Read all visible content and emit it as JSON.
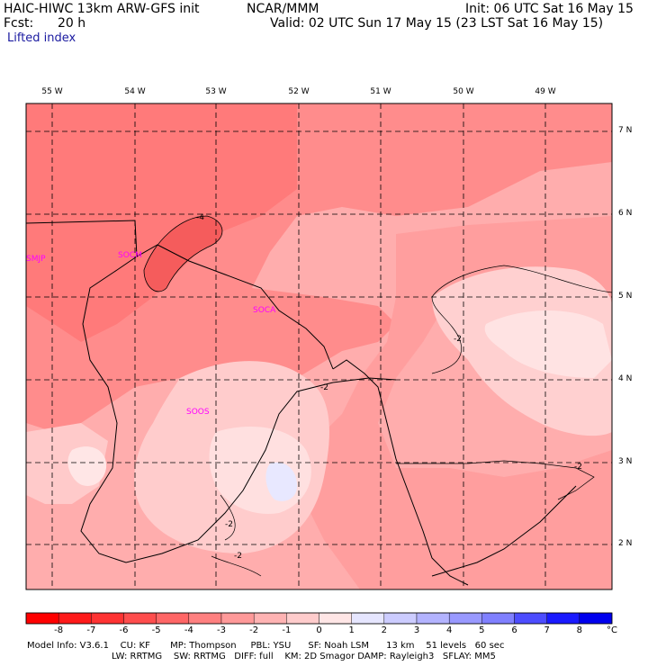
{
  "header": {
    "model": "HAIC-HIWC 13km ARW-GFS init",
    "agency": "NCAR/MMM",
    "init": "Init: 06 UTC Sat 16 May 15",
    "fcst_label": "Fcst:",
    "fcst_value": "20 h",
    "valid": "Valid: 02 UTC Sun 17 May 15 (23 LST Sat 16 May 15)",
    "field": "Lifted index"
  },
  "map": {
    "lon_labels": [
      "55 W",
      "54 W",
      "53 W",
      "52 W",
      "51 W",
      "50 W",
      "49 W"
    ],
    "lat_labels": [
      "7 N",
      "6 N",
      "5 N",
      "4 N",
      "3 N",
      "2 N"
    ],
    "stations": [
      "SMJP",
      "SOCM",
      "SOCA",
      "SOOS"
    ],
    "contour_labels": [
      "-4",
      "-2",
      "-2",
      "-2",
      "-2",
      "-2"
    ]
  },
  "colorbar": {
    "ticks": [
      "-8",
      "-7",
      "-6",
      "-5",
      "-4",
      "-3",
      "-2",
      "-1",
      "0",
      "1",
      "2",
      "3",
      "4",
      "5",
      "6",
      "7",
      "8"
    ],
    "unit": "°C",
    "colors": [
      "#ff1a1a",
      "#ff3333",
      "#ff4d4d",
      "#ff6666",
      "#ff8080",
      "#ff9999",
      "#ffb3b3",
      "#ffcccc",
      "#ffe6e6",
      "#e6e6ff",
      "#ccccff",
      "#b3b3ff",
      "#9999ff",
      "#8080ff",
      "#4d4dff",
      "#1a1aff",
      "#0000ee"
    ]
  },
  "footer": {
    "line1": "Model Info: V3.6.1    CU: KF       MP: Thompson     PBL: YSU      SF: Noah LSM      13 km    51 levels   60 sec",
    "line2": "LW: RRTMG    SW: RRTMG   DIFF: full    KM: 2D Smagor DAMP: Rayleigh3   SFLAY: MM5"
  }
}
